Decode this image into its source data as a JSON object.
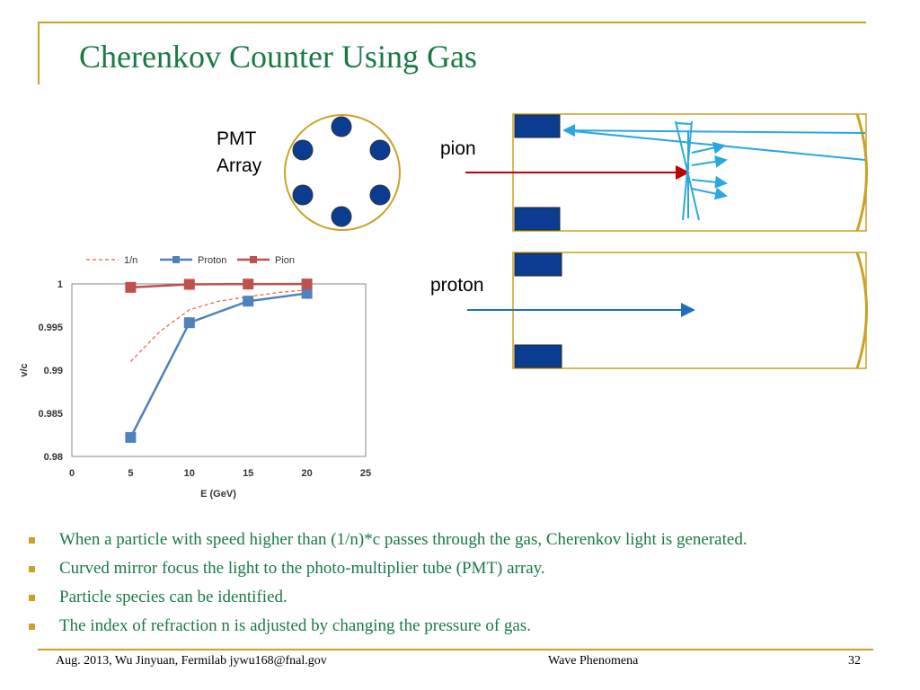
{
  "slide": {
    "title": "Cherenkov Counter Using Gas",
    "pmt_label_line1": "PMT",
    "pmt_label_line2": "Array",
    "pion_label": "pion",
    "proton_label": "proton"
  },
  "bullets": [
    "When a particle with speed higher than (1/n)*c passes through the gas, Cherenkov light is generated.",
    "Curved mirror focus the light to the photo-multiplier tube (PMT) array.",
    "Particle species can be identified.",
    "The index of refraction n is adjusted by changing the pressure of gas."
  ],
  "footer": {
    "left": "Aug. 2013, Wu Jinyuan, Fermilab jywu168@fnal.gov",
    "center": "Wave Phenomena",
    "page": "32"
  },
  "colors": {
    "title": "#1A7A45",
    "accent": "#C9A227",
    "pmt": "#0A3D91",
    "light_ray": "#29A8E0",
    "pion_arrow": "#C00000",
    "proton_arrow": "#1F6FBF"
  },
  "chart_data": {
    "type": "line",
    "xlabel": "E (GeV)",
    "ylabel": "v/c",
    "xlim": [
      0,
      25
    ],
    "ylim": [
      0.98,
      1
    ],
    "x_ticks": [
      "0",
      "5",
      "10",
      "15",
      "20",
      "25"
    ],
    "y_ticks": [
      "0.98",
      "0.985",
      "0.99",
      "0.995",
      "1"
    ],
    "legend_position": "top",
    "series": [
      {
        "name": "1/n",
        "style": "dashed",
        "color": "#F05A3C",
        "x": [
          5,
          7.5,
          10,
          12.5,
          15,
          17.5,
          20
        ],
        "y": [
          0.991,
          0.9945,
          0.997,
          0.998,
          0.9985,
          0.999,
          0.9993
        ]
      },
      {
        "name": "Proton",
        "style": "solid-square",
        "color": "#4F81BD",
        "x": [
          5,
          10,
          15,
          20
        ],
        "y": [
          0.9822,
          0.9955,
          0.998,
          0.9989
        ]
      },
      {
        "name": "Pion",
        "style": "solid-square",
        "color": "#C0504D",
        "x": [
          5,
          10,
          15,
          20
        ],
        "y": [
          0.9996,
          0.99995,
          0.99998,
          0.99999
        ]
      }
    ]
  }
}
